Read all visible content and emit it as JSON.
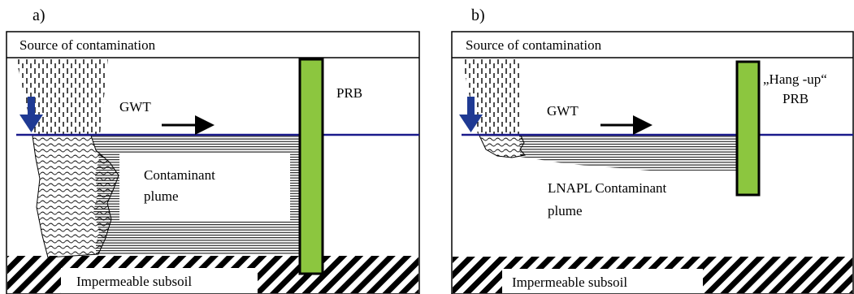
{
  "panel_a": {
    "label": "a)",
    "source": "Source of contamination",
    "gwt": "GWT",
    "prb": "PRB",
    "plume_line1": "Contaminant",
    "plume_line2": "plume",
    "subsoil": "Impermeable subsoil"
  },
  "panel_b": {
    "label": "b)",
    "source": "Source of contamination",
    "gwt": "GWT",
    "hangup": "„Hang -up“",
    "prb": "PRB",
    "plume_line1": "LNAPL Contaminant",
    "plume_line2": "plume",
    "subsoil": "Impermeable subsoil"
  },
  "colors": {
    "water_table": "#1a1a8c",
    "arrow_down": "#1f3a93",
    "prb_fill": "#8cc63f",
    "outline": "#000000"
  }
}
